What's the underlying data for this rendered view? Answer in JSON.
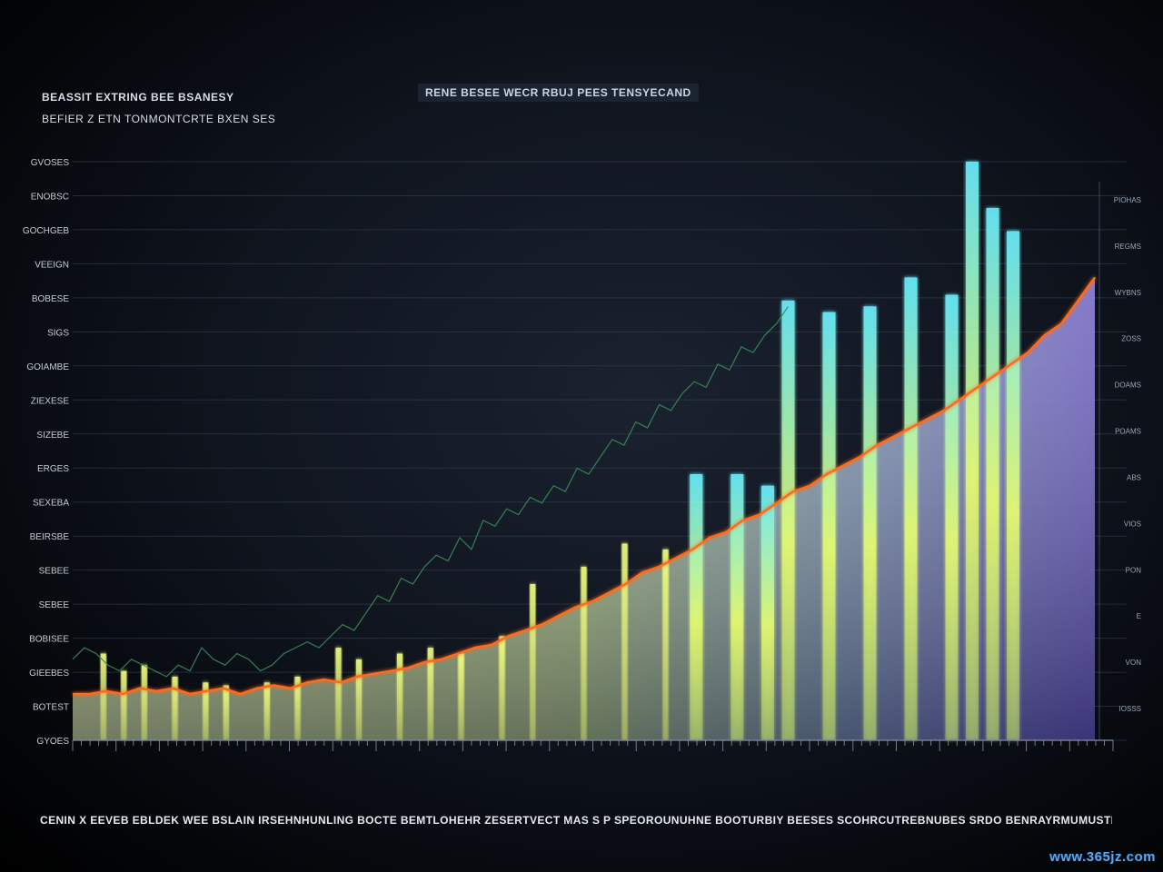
{
  "header": {
    "left_line_1": "BEASSIT EXTRING BEE BSANESY",
    "left_line_2": "BEFIER Z ETN TONMONTCRTE BXEN SES",
    "center": "RENE BESEE WECR RBUJ PEES TENSYECAND"
  },
  "footer_caption": "CENIN X EEVEB EBLDEK WEE BSLAIN IRSEHNHUNLING BOCTE BEMTLOHEHR ZESERTVECT MAS S P SPEOROUNUHNE BOOTURBIY BEESES SCOHRCUTREBNUBES SRDO BENRAYRMUMUSTEN",
  "watermark": "www.365jz.com",
  "chart_data": {
    "type": "area",
    "title": "",
    "xlabel": "",
    "ylabel": "",
    "xlim": [
      0,
      100
    ],
    "ylim": [
      0,
      100
    ],
    "grid": true,
    "y_ticks_left": [
      "GVOSES",
      "ENOBSC",
      "GOCHGEB",
      "VEEIGN",
      "BOBESE",
      "SIGS",
      "GOIAMBE",
      "ZIEXESE",
      "SIZEBE",
      "ERGES",
      "SEXEBA",
      "BEIRSBE",
      "SEBEE",
      "SEBEE",
      "BOBISEE",
      "GIEEBES",
      "BOTEST",
      "GYOES"
    ],
    "y_ticks_right": [
      "PIOHAS",
      "REGMS",
      "WYBNS",
      "ZOSS",
      "DOAMS",
      "POAMS",
      "ABS",
      "VIOS",
      "PON",
      "E",
      "VON",
      "IOSSS"
    ],
    "colors": {
      "area_low": "#d8f07a",
      "area_high": "#6a4ad8",
      "trend_line": "#ff6a1a",
      "spike_cyan": "#5ee8ff",
      "spike_yellow": "#e8ff5a",
      "secondary_line": "#3a8a5a",
      "grid": "#3a4556"
    },
    "series": [
      {
        "values": [
          8,
          8,
          8.5,
          8,
          9,
          8.5,
          9,
          8,
          8.5,
          9,
          8,
          9,
          9.5,
          9,
          10,
          10.5,
          10,
          11,
          11.5,
          12,
          12.5,
          13.5,
          14,
          15,
          16,
          16.5,
          18,
          19,
          20,
          21.5,
          23,
          24,
          25.5,
          27,
          29,
          30,
          31.5,
          33,
          35,
          36,
          38,
          39,
          41,
          43,
          44,
          46,
          47.5,
          49,
          51,
          52.5,
          54,
          55.5,
          57,
          59,
          61,
          63,
          65,
          67,
          70,
          72,
          76,
          80
        ]
      },
      {
        "values": [
          14,
          16,
          15,
          13,
          12,
          14,
          13,
          12,
          11,
          13,
          12,
          16,
          14,
          13,
          15,
          14,
          12,
          13,
          15,
          16,
          17,
          16,
          18,
          20,
          19,
          22,
          25,
          24,
          28,
          27,
          30,
          32,
          31,
          35,
          33,
          38,
          37,
          40,
          39,
          42,
          41,
          44,
          43,
          47,
          46,
          49,
          52,
          51,
          55,
          54,
          58,
          57,
          60,
          62,
          61,
          65,
          64,
          68,
          67,
          70,
          72,
          75
        ]
      }
    ],
    "spikes": [
      {
        "x": 3,
        "value": 15
      },
      {
        "x": 5,
        "value": 12
      },
      {
        "x": 7,
        "value": 13
      },
      {
        "x": 10,
        "value": 11
      },
      {
        "x": 13,
        "value": 10
      },
      {
        "x": 15,
        "value": 9.5
      },
      {
        "x": 19,
        "value": 10
      },
      {
        "x": 22,
        "value": 11
      },
      {
        "x": 26,
        "value": 16
      },
      {
        "x": 28,
        "value": 14
      },
      {
        "x": 32,
        "value": 15
      },
      {
        "x": 35,
        "value": 16
      },
      {
        "x": 38,
        "value": 15
      },
      {
        "x": 42,
        "value": 18
      },
      {
        "x": 45,
        "value": 27
      },
      {
        "x": 50,
        "value": 30
      },
      {
        "x": 54,
        "value": 34
      },
      {
        "x": 58,
        "value": 33
      },
      {
        "x": 61,
        "value": 46
      },
      {
        "x": 65,
        "value": 46
      },
      {
        "x": 68,
        "value": 44
      },
      {
        "x": 70,
        "value": 76
      },
      {
        "x": 74,
        "value": 74
      },
      {
        "x": 78,
        "value": 75
      },
      {
        "x": 82,
        "value": 80
      },
      {
        "x": 86,
        "value": 77
      },
      {
        "x": 88,
        "value": 100
      },
      {
        "x": 90,
        "value": 92
      },
      {
        "x": 92,
        "value": 88
      }
    ]
  }
}
